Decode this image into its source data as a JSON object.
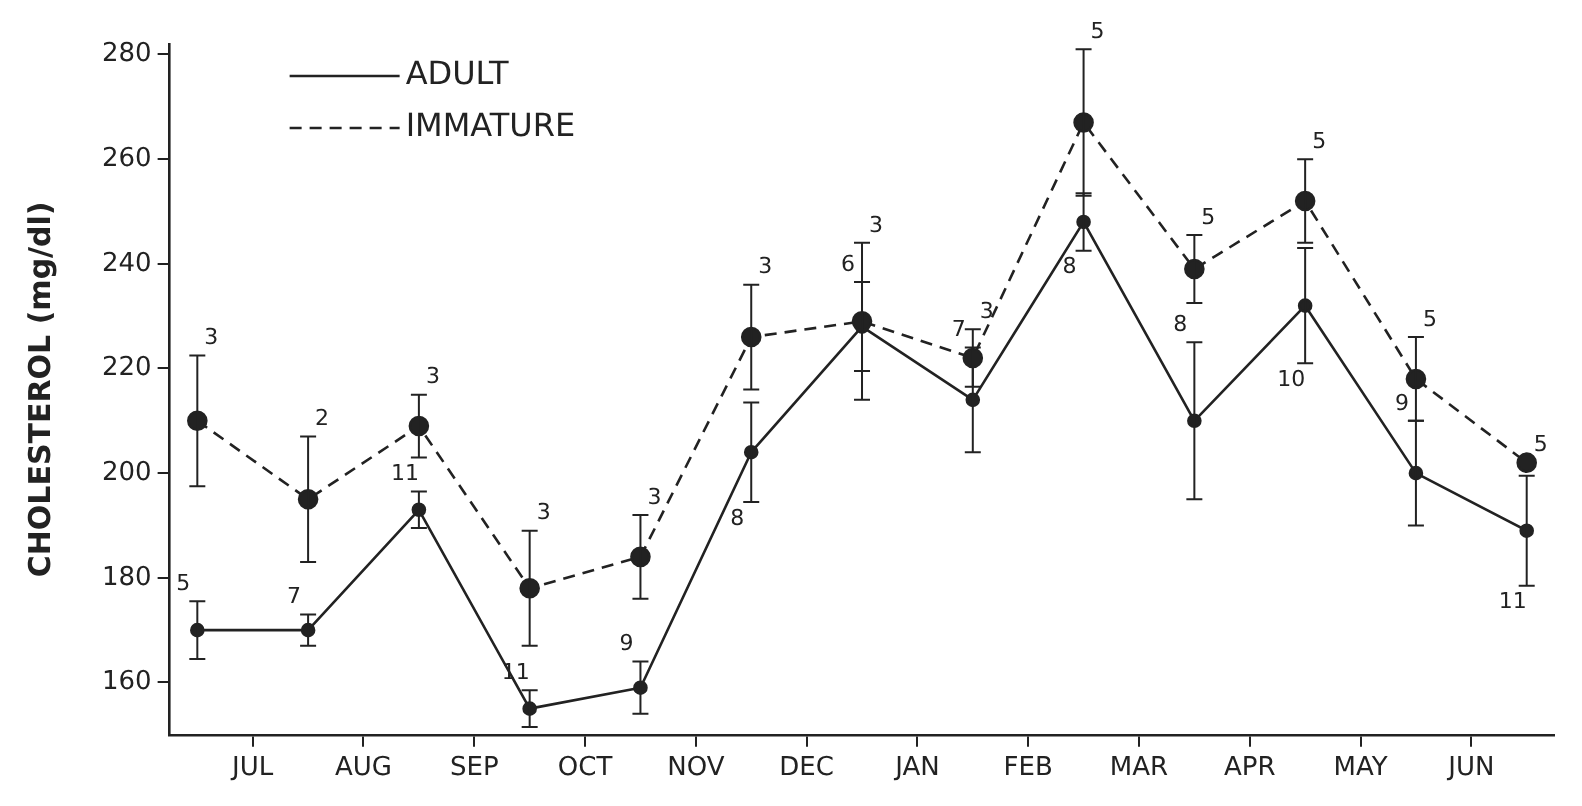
{
  "chart_data": {
    "type": "line",
    "ylabel": "CHOLESTEROL (mg/dl)",
    "categories": [
      null,
      "JUL",
      null,
      "AUG",
      null,
      "SEP",
      null,
      "OCT",
      null,
      "NOV",
      null,
      "DEC",
      null,
      "JAN",
      null,
      "FEB",
      null,
      "MAR",
      null,
      "APR",
      null,
      "MAY",
      null,
      "JUN",
      null
    ],
    "ylim": [
      150,
      282
    ],
    "yticks": [
      160,
      180,
      200,
      220,
      240,
      260,
      280
    ],
    "grid": false,
    "legend": "top left",
    "marker": "circle",
    "series": [
      {
        "name": "ADULT",
        "color": "#222222",
        "line_style": "solid",
        "values": [
          170,
          null,
          170,
          null,
          193,
          null,
          155,
          null,
          159,
          null,
          204,
          null,
          228,
          null,
          214,
          null,
          248,
          null,
          210,
          null,
          232,
          null,
          200,
          null,
          189
        ],
        "errors": [
          5.5,
          null,
          3,
          null,
          3.5,
          null,
          3.5,
          null,
          5,
          null,
          9.5,
          null,
          8.5,
          null,
          10,
          null,
          5.5,
          null,
          15,
          null,
          11,
          null,
          10,
          null,
          10.5
        ]
      },
      {
        "name": "IMMATURE",
        "color": "#222222",
        "line_style": "dashed",
        "values": [
          210,
          null,
          195,
          null,
          209,
          null,
          178,
          null,
          184,
          null,
          226,
          null,
          229,
          null,
          222,
          null,
          267,
          null,
          239,
          null,
          252,
          null,
          218,
          null,
          202
        ],
        "errors": [
          12.5,
          null,
          12,
          null,
          6,
          null,
          11,
          null,
          8,
          null,
          10,
          null,
          15,
          null,
          5.5,
          null,
          14,
          null,
          6.5,
          null,
          8,
          null,
          8,
          null,
          null
        ]
      }
    ],
    "annotations": [
      {
        "text": "5",
        "y": 175.5
      },
      {
        "text": "3",
        "y": 222.5
      },
      {
        "text": "7",
        "y": 173
      },
      {
        "text": "2",
        "y": 207
      },
      {
        "text": "11",
        "y": 196.5
      },
      {
        "text": "3",
        "y": 215
      },
      {
        "text": "11",
        "y": 158.5
      },
      {
        "text": "3",
        "y": 189
      },
      {
        "text": "9",
        "y": 164
      },
      {
        "text": "3",
        "y": 192
      },
      {
        "text": "8",
        "y": 194.5
      },
      {
        "text": "3",
        "y": 236
      },
      {
        "text": "6",
        "y": 236.5
      },
      {
        "text": "3",
        "y": 244
      },
      {
        "text": "7",
        "y": 224
      },
      {
        "text": "3",
        "y": 227.5
      },
      {
        "text": "8",
        "y": 242.5
      },
      {
        "text": "5",
        "y": 281
      },
      {
        "text": "8",
        "y": 225
      },
      {
        "text": "5",
        "y": 245.5
      },
      {
        "text": "10",
        "y": 221
      },
      {
        "text": "5",
        "y": 260
      },
      {
        "text": "9",
        "y": 210
      },
      {
        "text": "5",
        "y": 226
      },
      {
        "text": "11",
        "y": 178.5
      },
      {
        "text": "5",
        "y": 202
      }
    ]
  }
}
